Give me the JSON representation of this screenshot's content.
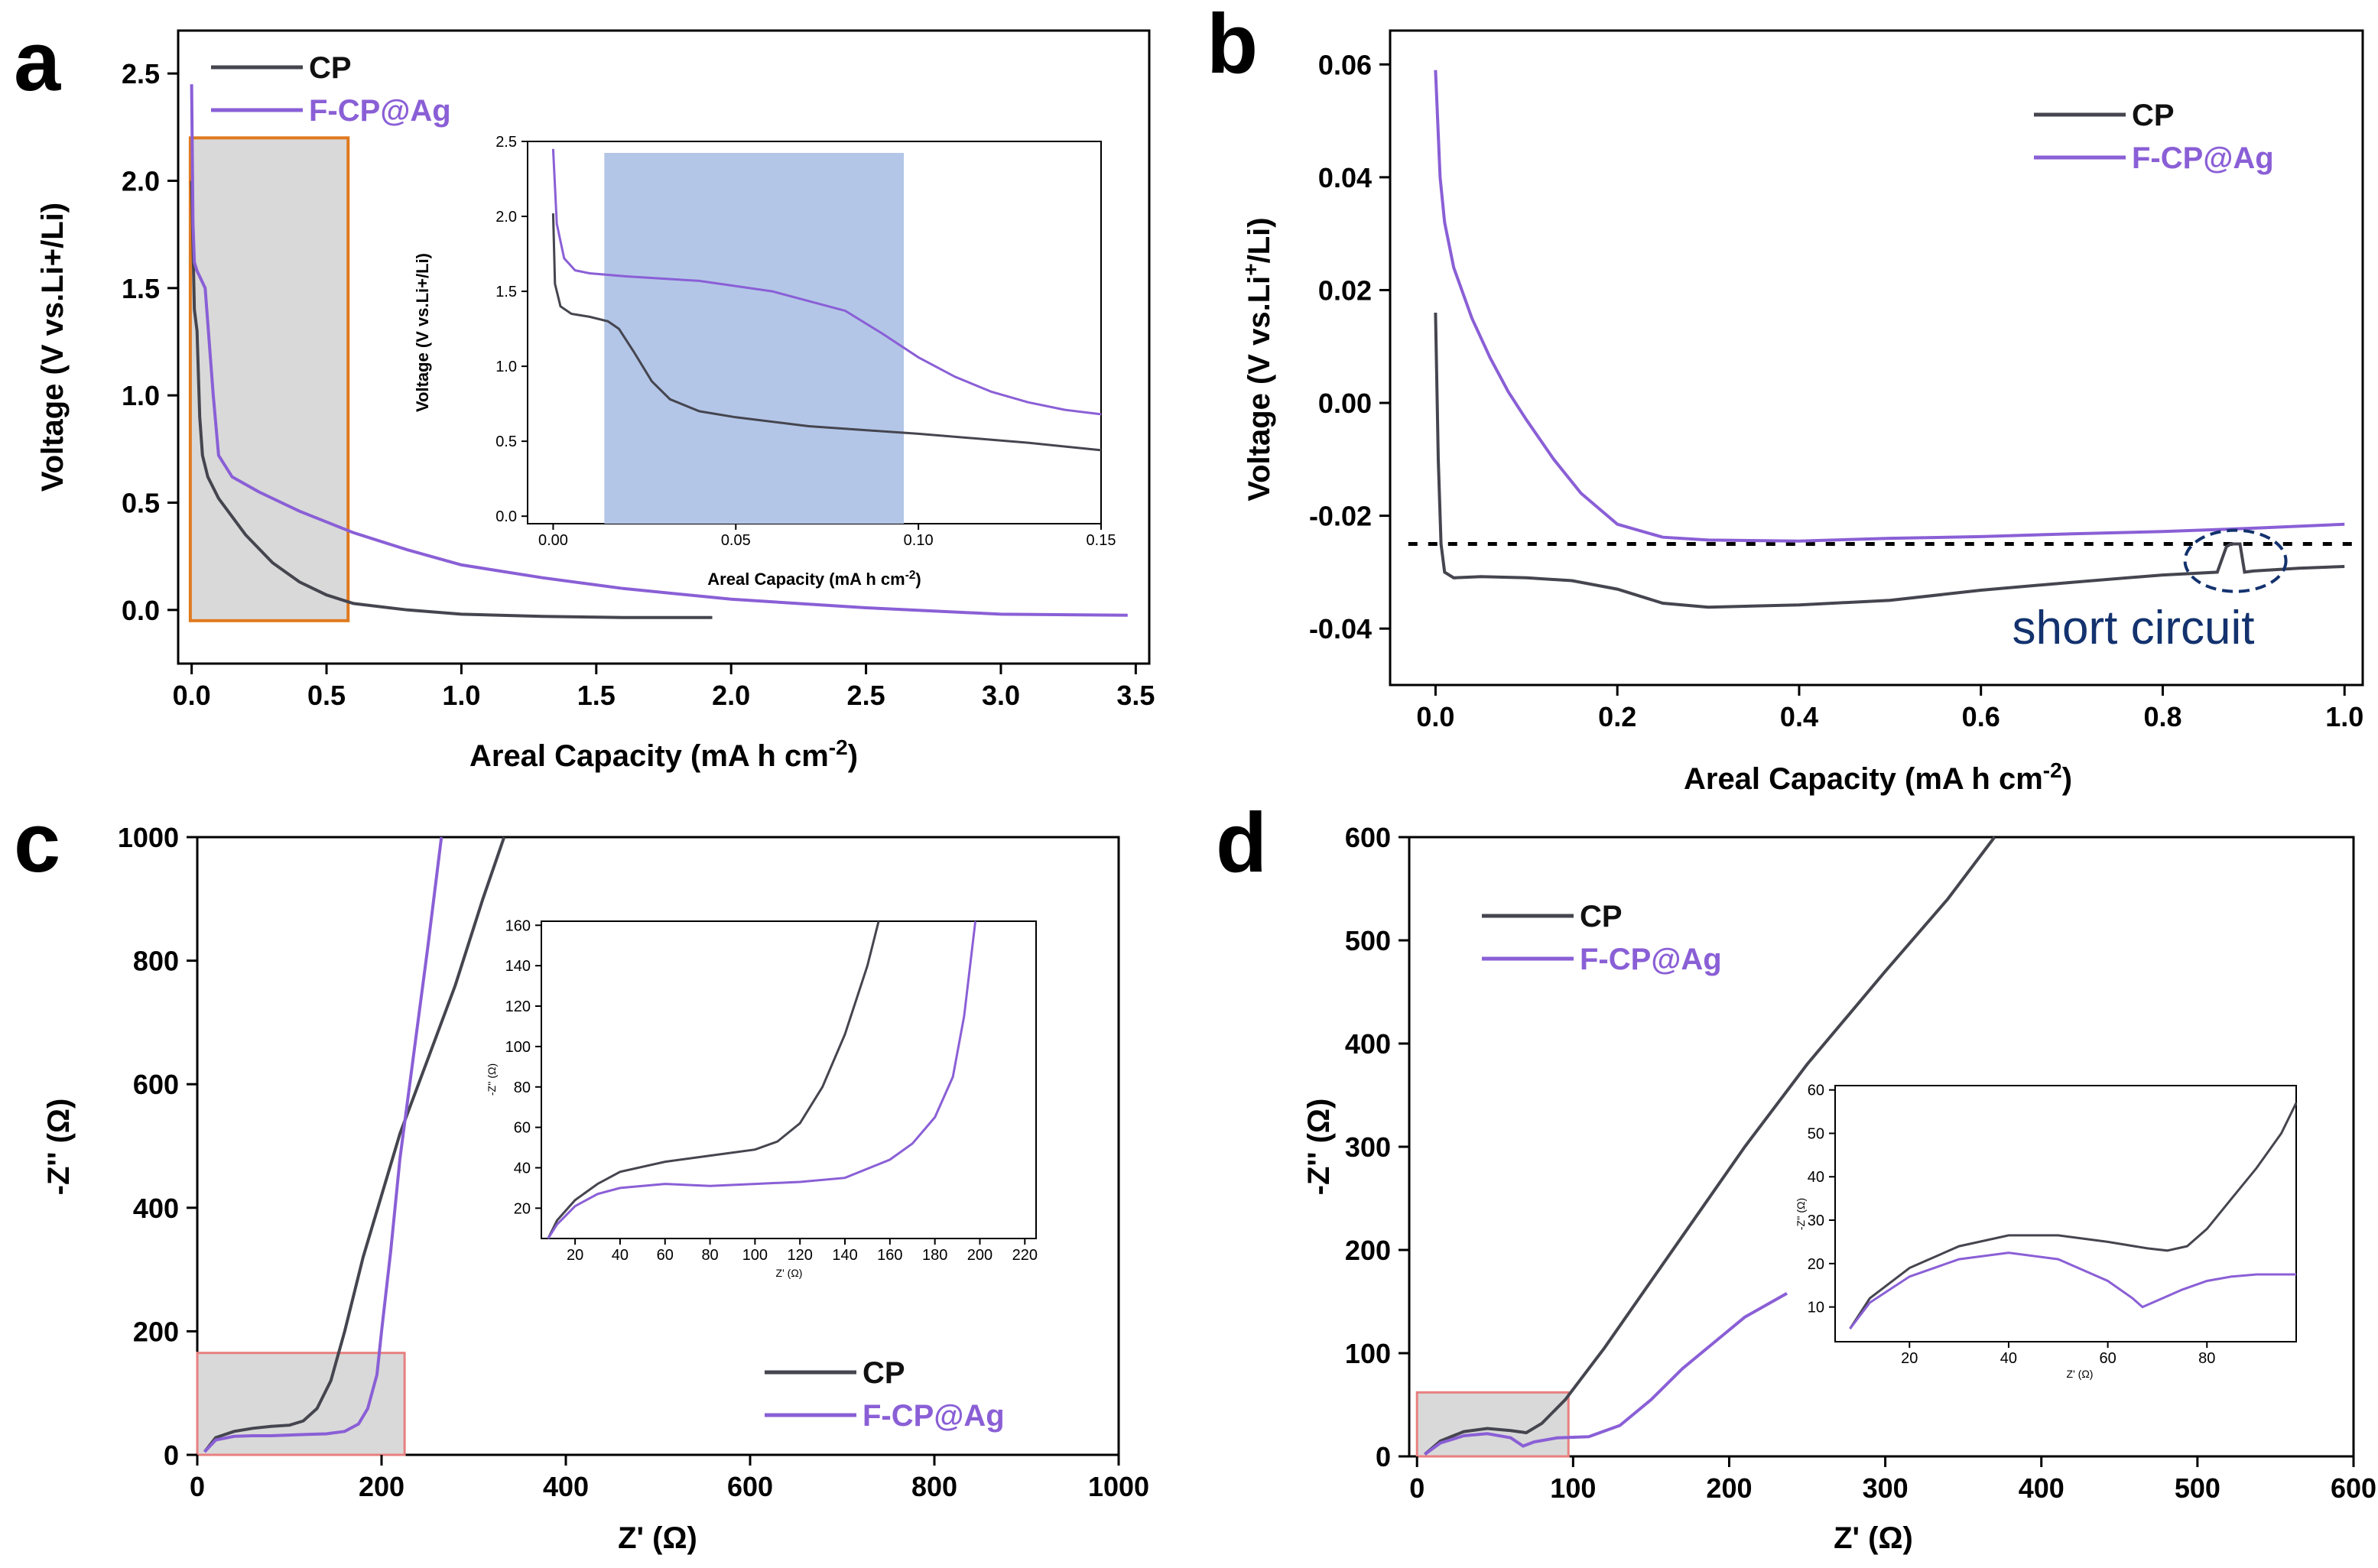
{
  "colors": {
    "cp": "#45454f",
    "ag": "#8a5fd6",
    "zoom_gray": "#d9d9d9",
    "zoom_orange": "#e07a1f",
    "zoom_red": "#e88080",
    "highlight_blue": "#b3c6e7",
    "annot_blue": "#13326e"
  },
  "panels": [
    {
      "id": "a",
      "letter": "a",
      "legend": [
        "CP",
        "F-CP@Ag"
      ],
      "main": {
        "xlabel": "Areal Capacity (mA h cm",
        "xlabel_sup": "-2",
        "xlabel_end": ")",
        "ylabel": "Voltage (V vs.Li+/Li)",
        "xlim": [
          -0.05,
          3.55
        ],
        "ylim": [
          -0.25,
          2.7
        ],
        "xticks": [
          "0.0",
          "0.5",
          "1.0",
          "1.5",
          "2.0",
          "2.5",
          "3.0",
          "3.5"
        ],
        "yticks": [
          "0.0",
          "0.5",
          "1.0",
          "1.5",
          "2.0",
          "2.5"
        ],
        "series": [
          {
            "name": "CP",
            "x": [
              0,
              0.01,
              0.02,
              0.03,
              0.04,
              0.06,
              0.1,
              0.2,
              0.3,
              0.4,
              0.5,
              0.6,
              0.8,
              1.0,
              1.3,
              1.6,
              1.93
            ],
            "y": [
              2.0,
              1.4,
              1.3,
              0.9,
              0.72,
              0.62,
              0.52,
              0.35,
              0.22,
              0.13,
              0.07,
              0.03,
              0.0,
              -0.02,
              -0.03,
              -0.035,
              -0.035
            ]
          },
          {
            "name": "F-CP@Ag",
            "x": [
              0,
              0.005,
              0.01,
              0.02,
              0.05,
              0.08,
              0.1,
              0.15,
              0.25,
              0.4,
              0.6,
              0.8,
              1.0,
              1.3,
              1.6,
              2.0,
              2.5,
              3.0,
              3.47
            ],
            "y": [
              2.45,
              1.8,
              1.62,
              1.58,
              1.5,
              1.0,
              0.72,
              0.62,
              0.55,
              0.46,
              0.36,
              0.28,
              0.21,
              0.15,
              0.1,
              0.05,
              0.01,
              -0.02,
              -0.025
            ]
          }
        ]
      },
      "inset": {
        "xlabel": "Areal Capacity (mA h cm",
        "xlabel_sup": "-2",
        "xlabel_end": ")",
        "ylabel": "Voltage (V vs.Li+/Li)",
        "xlim": [
          -0.007,
          0.15
        ],
        "ylim": [
          -0.05,
          2.5
        ],
        "xticks": [
          "0.00",
          "0.05",
          "0.10",
          "0.15"
        ],
        "yticks": [
          "0.0",
          "0.5",
          "1.0",
          "1.5",
          "2.0",
          "2.5"
        ],
        "highlight_x": [
          0.014,
          0.096
        ],
        "series": [
          {
            "name": "CP",
            "x": [
              0,
              0.0005,
              0.002,
              0.005,
              0.01,
              0.015,
              0.018,
              0.022,
              0.027,
              0.032,
              0.04,
              0.05,
              0.07,
              0.1,
              0.13,
              0.15
            ],
            "y": [
              2.02,
              1.55,
              1.4,
              1.35,
              1.33,
              1.3,
              1.25,
              1.1,
              0.9,
              0.78,
              0.7,
              0.66,
              0.6,
              0.55,
              0.49,
              0.44
            ]
          },
          {
            "name": "F-CP@Ag",
            "x": [
              0,
              0.001,
              0.003,
              0.006,
              0.01,
              0.02,
              0.04,
              0.06,
              0.08,
              0.09,
              0.1,
              0.11,
              0.12,
              0.13,
              0.14,
              0.15
            ],
            "y": [
              2.45,
              1.95,
              1.72,
              1.64,
              1.62,
              1.6,
              1.57,
              1.5,
              1.37,
              1.22,
              1.06,
              0.93,
              0.83,
              0.76,
              0.71,
              0.68
            ]
          }
        ]
      }
    },
    {
      "id": "b",
      "letter": "b",
      "legend": [
        "CP",
        "F-CP@Ag"
      ],
      "main": {
        "xlabel": "Areal Capacity (mA h cm",
        "xlabel_sup": "-2",
        "xlabel_end": ")",
        "ylabel": "Voltage (V vs.Li",
        "ylabel_sup": "+",
        "ylabel_end": "/Li)",
        "xlim": [
          -0.05,
          1.02
        ],
        "ylim": [
          -0.05,
          0.066
        ],
        "xticks": [
          "0.0",
          "0.2",
          "0.4",
          "0.6",
          "0.8",
          "1.0"
        ],
        "yticks": [
          "-0.04",
          "-0.02",
          "0.00",
          "0.02",
          "0.04",
          "0.06"
        ],
        "reference_y": -0.025,
        "annotation": "short circuit",
        "series": [
          {
            "name": "CP",
            "x": [
              0,
              0.003,
              0.006,
              0.01,
              0.02,
              0.05,
              0.1,
              0.15,
              0.2,
              0.25,
              0.3,
              0.4,
              0.5,
              0.6,
              0.7,
              0.8,
              0.86,
              0.87,
              0.875,
              0.885,
              0.89,
              0.9,
              0.95,
              1.0
            ],
            "y": [
              0.016,
              -0.01,
              -0.025,
              -0.03,
              -0.031,
              -0.0308,
              -0.031,
              -0.0315,
              -0.033,
              -0.0355,
              -0.0362,
              -0.0358,
              -0.035,
              -0.0332,
              -0.0318,
              -0.0305,
              -0.03,
              -0.0255,
              -0.025,
              -0.025,
              -0.03,
              -0.0298,
              -0.0293,
              -0.029
            ]
          },
          {
            "name": "F-CP@Ag",
            "x": [
              0,
              0.005,
              0.01,
              0.02,
              0.04,
              0.06,
              0.08,
              0.1,
              0.13,
              0.16,
              0.2,
              0.25,
              0.3,
              0.4,
              0.5,
              0.6,
              0.7,
              0.8,
              0.9,
              1.0
            ],
            "y": [
              0.059,
              0.04,
              0.032,
              0.024,
              0.015,
              0.008,
              0.002,
              -0.003,
              -0.01,
              -0.016,
              -0.0215,
              -0.0238,
              -0.0243,
              -0.0245,
              -0.024,
              -0.0237,
              -0.0232,
              -0.0228,
              -0.0222,
              -0.0215
            ]
          }
        ]
      }
    },
    {
      "id": "c",
      "letter": "c",
      "legend": [
        "CP",
        "F-CP@Ag"
      ],
      "main": {
        "xlabel": "Z' (Ω)",
        "ylabel": "-Z'' (Ω)",
        "xlim": [
          0,
          1000
        ],
        "ylim": [
          0,
          1000
        ],
        "xticks": [
          "0",
          "200",
          "400",
          "600",
          "800",
          "1000"
        ],
        "yticks": [
          "0",
          "200",
          "400",
          "600",
          "800",
          "1000"
        ],
        "series": [
          {
            "name": "CP",
            "x": [
              8,
              20,
              40,
              60,
              80,
              100,
              115,
              130,
              145,
              160,
              180,
              200,
              220,
              250,
              280,
              310,
              333
            ],
            "y": [
              5,
              28,
              38,
              43,
              46,
              48,
              55,
              75,
              120,
              200,
              320,
              420,
              520,
              640,
              760,
              900,
              1000
            ]
          },
          {
            "name": "F-CP@Ag",
            "x": [
              8,
              20,
              40,
              60,
              80,
              100,
              120,
              140,
              160,
              175,
              185,
              195,
              200,
              210,
              220,
              235,
              250,
              265
            ],
            "y": [
              5,
              24,
              30,
              31,
              31,
              32,
              33,
              34,
              38,
              50,
              75,
              130,
              200,
              330,
              480,
              650,
              820,
              1000
            ]
          }
        ]
      },
      "inset": {
        "xlabel": "Z' (Ω)",
        "ylabel": "-Z'' (Ω)",
        "xlim": [
          5,
          225
        ],
        "ylim": [
          5,
          162
        ],
        "xticks": [
          "20",
          "40",
          "60",
          "80",
          "100",
          "120",
          "140",
          "160",
          "180",
          "200",
          "220"
        ],
        "yticks": [
          "20",
          "40",
          "60",
          "80",
          "100",
          "120",
          "140",
          "160"
        ],
        "series": [
          {
            "name": "CP",
            "x": [
              8,
              12,
              20,
              30,
              40,
              60,
              80,
              100,
              110,
              120,
              130,
              140,
              150,
              155
            ],
            "y": [
              5,
              14,
              24,
              32,
              38,
              43,
              46,
              49,
              53,
              62,
              80,
              106,
              140,
              162
            ]
          },
          {
            "name": "F-CP@Ag",
            "x": [
              8,
              12,
              20,
              30,
              40,
              60,
              80,
              100,
              120,
              140,
              160,
              170,
              180,
              188,
              193,
              198
            ],
            "y": [
              5,
              12,
              21,
              27,
              30,
              32,
              31,
              32,
              33,
              35,
              44,
              52,
              65,
              85,
              115,
              162
            ]
          }
        ]
      }
    },
    {
      "id": "d",
      "letter": "d",
      "legend": [
        "CP",
        "F-CP@Ag"
      ],
      "main": {
        "xlabel": "Z' (Ω)",
        "ylabel": "-Z'' (Ω)",
        "xlim": [
          -5,
          600
        ],
        "ylim": [
          0,
          600
        ],
        "xticks": [
          "0",
          "100",
          "200",
          "300",
          "400",
          "500",
          "600"
        ],
        "yticks": [
          "0",
          "100",
          "200",
          "300",
          "400",
          "500",
          "600"
        ],
        "series": [
          {
            "name": "CP",
            "x": [
              5,
              15,
              30,
              45,
              60,
              70,
              80,
              95,
              120,
              150,
              180,
              210,
              250,
              300,
              340,
              370
            ],
            "y": [
              2,
              15,
              24,
              27,
              25,
              23,
              32,
              55,
              105,
              170,
              235,
              300,
              380,
              470,
              540,
              600
            ]
          },
          {
            "name": "F-CP@Ag",
            "x": [
              5,
              15,
              30,
              45,
              60,
              68,
              75,
              90,
              110,
              130,
              150,
              170,
              190,
              210,
              237
            ],
            "y": [
              2,
              13,
              20,
              22,
              18,
              10,
              14,
              18,
              19,
              30,
              55,
              85,
              110,
              135,
              158
            ]
          }
        ]
      },
      "inset": {
        "xlabel": "Z' (Ω)",
        "ylabel": "-Z'' (Ω)",
        "xlim": [
          5,
          98
        ],
        "ylim": [
          2,
          61
        ],
        "xticks": [
          "20",
          "40",
          "60",
          "80"
        ],
        "yticks": [
          "10",
          "20",
          "30",
          "40",
          "50",
          "60"
        ],
        "series": [
          {
            "name": "CP",
            "x": [
              8,
              12,
              20,
              30,
              40,
              50,
              60,
              68,
              72,
              76,
              80,
              85,
              90,
              95,
              98
            ],
            "y": [
              5,
              12,
              19,
              24,
              26.5,
              26.5,
              25,
              23.5,
              23,
              24,
              28,
              35,
              42,
              50,
              57
            ]
          },
          {
            "name": "F-CP@Ag",
            "x": [
              8,
              12,
              20,
              30,
              40,
              50,
              60,
              65,
              67,
              70,
              75,
              80,
              85,
              90,
              98
            ],
            "y": [
              5,
              11,
              17,
              21,
              22.5,
              21,
              16,
              12,
              10,
              11.5,
              14,
              16,
              17,
              17.5,
              17.5
            ]
          }
        ]
      }
    }
  ]
}
